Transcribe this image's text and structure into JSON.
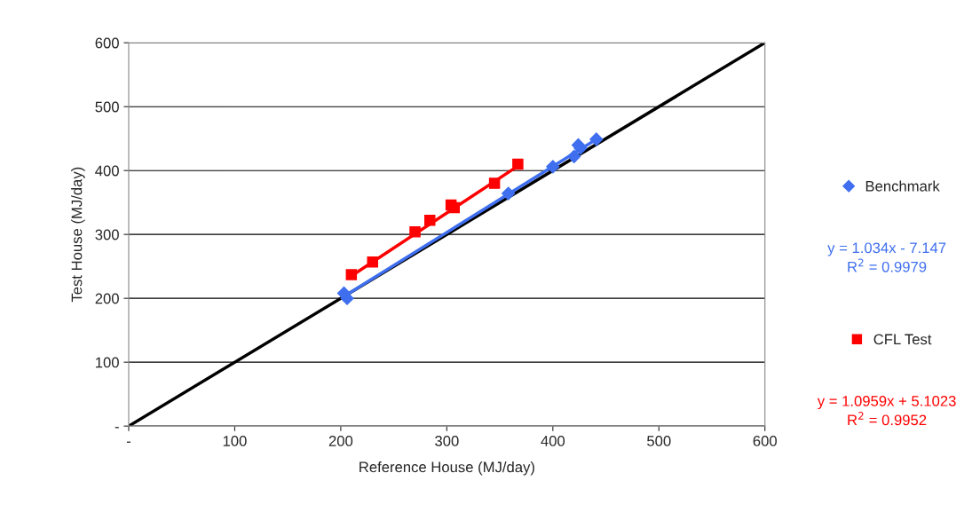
{
  "chart_data": {
    "type": "scatter",
    "xlabel": "Reference House (MJ/day)",
    "ylabel": "Test House (MJ/day)",
    "xlim": [
      0,
      600
    ],
    "ylim": [
      0,
      600
    ],
    "xticks": [
      {
        "value": 0,
        "label": "-"
      },
      100,
      200,
      300,
      400,
      500,
      600
    ],
    "yticks": [
      {
        "value": 0,
        "label": "-"
      },
      100,
      200,
      300,
      400,
      500,
      600
    ],
    "grid": "y",
    "legend": "right",
    "series": [
      {
        "type": "line",
        "color": "#000000",
        "x": [
          0,
          600
        ],
        "values": [
          0,
          600
        ],
        "marker": "none"
      },
      {
        "type": "line",
        "color": "#3f6fef",
        "x": [
          203,
          442
        ],
        "values": [
          203,
          450
        ],
        "marker": "none"
      },
      {
        "type": "line",
        "color": "#ff0000",
        "x": [
          210,
          367
        ],
        "values": [
          235,
          407
        ],
        "marker": "none"
      },
      {
        "name": "Benchmark",
        "color": "#3f6fef",
        "marker": "diamond",
        "x": [
          203,
          206,
          358,
          400,
          420,
          424,
          426,
          441
        ],
        "values": [
          208,
          200,
          364,
          406,
          422,
          440,
          435,
          449
        ]
      },
      {
        "name": "CFL Test",
        "color": "#ff0000",
        "marker": "square",
        "x": [
          210,
          230,
          270,
          284,
          304,
          307,
          345,
          367
        ],
        "values": [
          237,
          257,
          304,
          322,
          346,
          342,
          380,
          410
        ]
      }
    ],
    "annotations": [
      "y = 1.034x - 7.147\nR$^{2}$ = 0.9979",
      "y = 1.0959x + 5.1023\nR$^{2}$ = 0.9952"
    ]
  }
}
